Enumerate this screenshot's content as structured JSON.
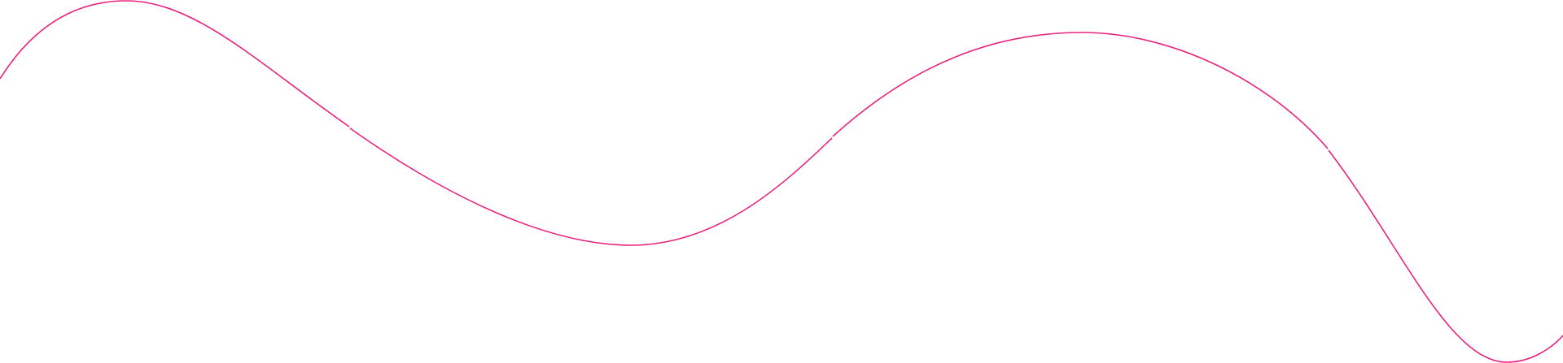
{
  "decoration": {
    "type": "wavy-line",
    "segments": 4,
    "stroke_color": "#e8237f",
    "background_color": "#ffffff"
  }
}
